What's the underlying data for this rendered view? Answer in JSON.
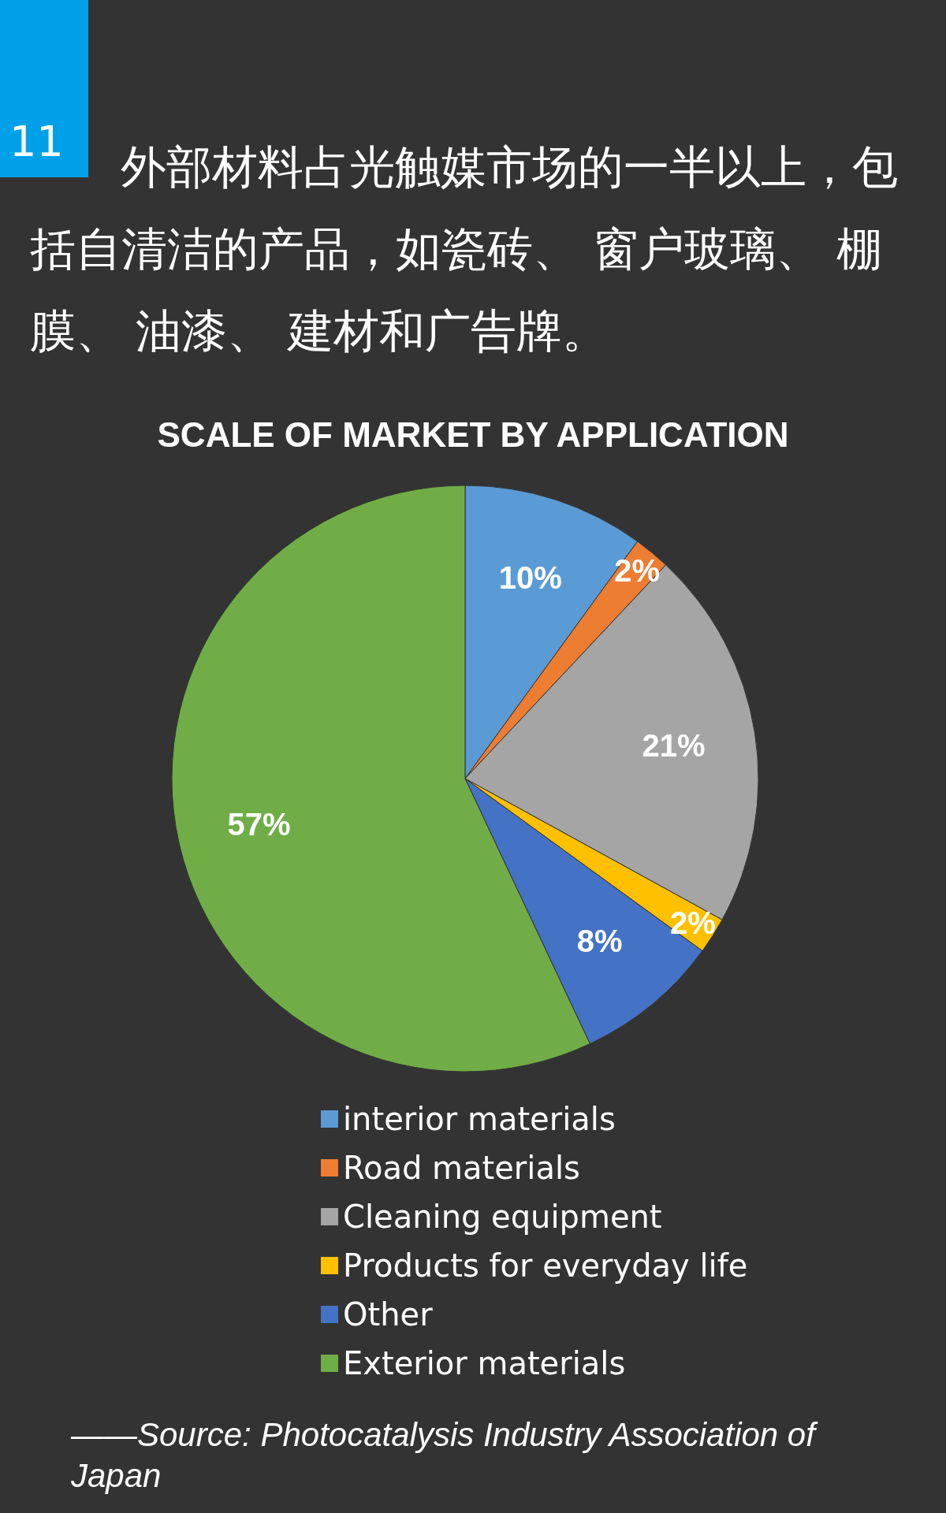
{
  "chart_data": {
    "type": "pie",
    "title": "外部材料占光触媒市场的一半以上，包括自清洁的产品，如瓷砖、 窗户玻璃、 棚膜、 油漆、 建材和广告牌。",
    "subtitle": "SCALE OF MARKET BY APPLICATION",
    "categories": [
      "interior materials",
      "Road materials",
      "Cleaning equipment",
      "Products for everyday life",
      "Other",
      "Exterior materials"
    ],
    "values": [
      10,
      2,
      21,
      2,
      8,
      57
    ],
    "colors": [
      "#5b9bd5",
      "#ed7d31",
      "#a5a5a5",
      "#ffc000",
      "#4472c4",
      "#70ad47"
    ],
    "value_labels": [
      "10%",
      "2%",
      "21%",
      "2%",
      "8%",
      "57%"
    ],
    "legend": "bottom",
    "annotations": [
      "11",
      "——Source: Photocatalysis Industry Association of Japan"
    ]
  }
}
